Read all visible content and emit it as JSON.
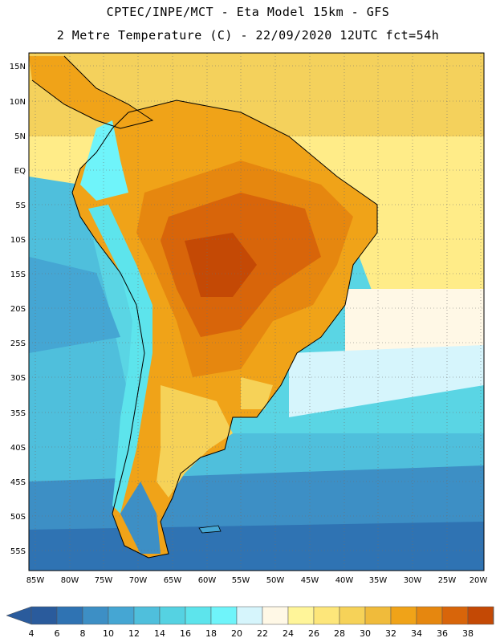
{
  "title_line1": "CPTEC/INPE/MCT -  Eta Model 15km - GFS",
  "title_line2": "2 Metre Temperature (C) - 22/09/2020 12UTC fct=54h",
  "lat_labels": [
    "15N",
    "10N",
    "5N",
    "EQ",
    "5S",
    "10S",
    "15S",
    "20S",
    "25S",
    "30S",
    "35S",
    "40S",
    "45S",
    "50S",
    "55S"
  ],
  "lon_labels": [
    "85W",
    "80W",
    "75W",
    "70W",
    "65W",
    "60W",
    "55W",
    "50W",
    "45W",
    "40W",
    "35W",
    "30W",
    "25W",
    "20W"
  ],
  "colorbar": {
    "labels": [
      "4",
      "6",
      "8",
      "10",
      "12",
      "14",
      "16",
      "18",
      "20",
      "22",
      "24",
      "26",
      "28",
      "30",
      "32",
      "34",
      "36",
      "38"
    ],
    "colors": [
      "#2a5b9c",
      "#2f73b3",
      "#3d8fc5",
      "#45a6d3",
      "#4fbfdc",
      "#55d2e2",
      "#5de4ec",
      "#6ff4fa",
      "#d6f5fc",
      "#fff8e6",
      "#fff599",
      "#fde67a",
      "#f6d258",
      "#f0bb3b",
      "#f0a318",
      "#e6870f",
      "#d8650a",
      "#c44905",
      "#b83a02"
    ],
    "low_arrow_color": "#2a5b9c",
    "high_arrow_color": "#b83a02"
  }
}
